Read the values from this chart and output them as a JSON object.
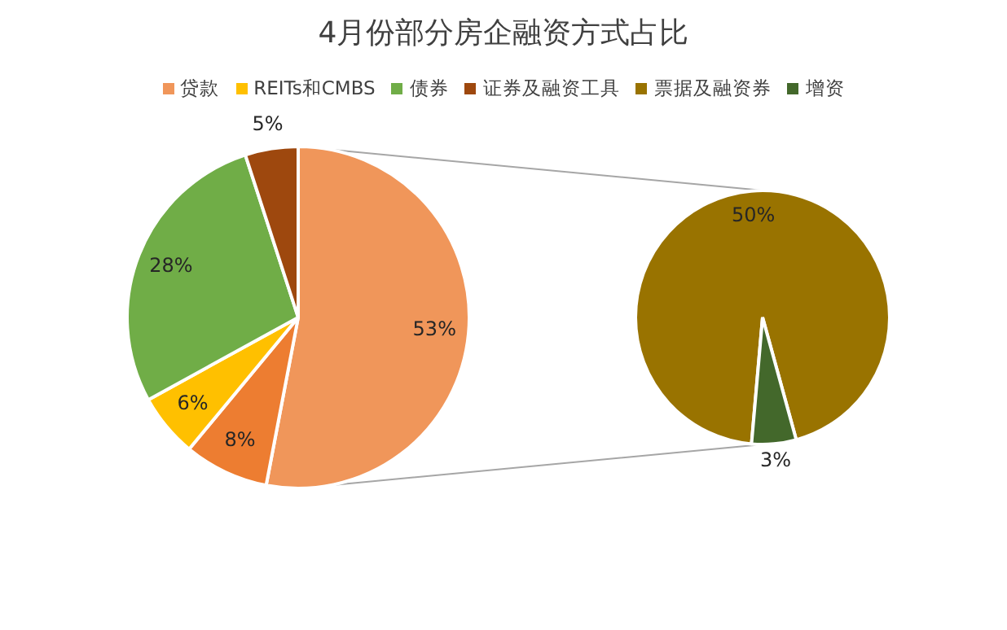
{
  "chart_data": [
    {
      "type": "pie",
      "title": "4月份部分房企融资方式占比",
      "categories": [
        "贷款",
        null,
        "REITs和CMBS",
        "债券",
        "证券及融资工具"
      ],
      "values": [
        53,
        8,
        6,
        28,
        5
      ],
      "value_labels": [
        "53%",
        "8%",
        "6%",
        "28%",
        "5%"
      ],
      "colors": [
        "#f0965a",
        "#ed7d31",
        "#ffc000",
        "#70ad47",
        "#9e480e"
      ],
      "legend": "top"
    },
    {
      "type": "pie",
      "categories": [
        "票据及融资券",
        "增资"
      ],
      "values": [
        50,
        3
      ],
      "value_labels": [
        "50%",
        "3%"
      ],
      "colors": [
        "#997300",
        "#43682b"
      ],
      "legend": "top"
    }
  ]
}
